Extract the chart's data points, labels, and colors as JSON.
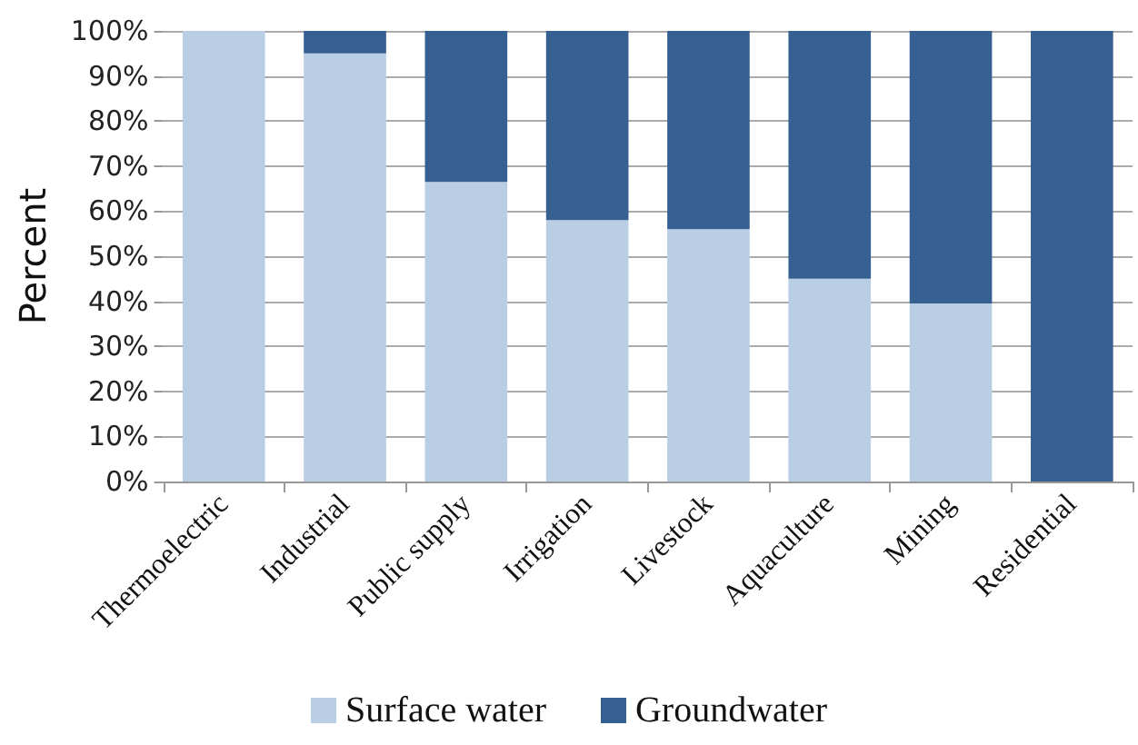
{
  "chart_data": {
    "type": "bar",
    "ylabel": "Percent",
    "stacked": true,
    "categories": [
      "Thermoelectric",
      "Industrial",
      "Public supply",
      "Irrigation",
      "Livestock",
      "Aquaculture",
      "Mining",
      "Residential"
    ],
    "series": [
      {
        "name": "Surface water",
        "color": "#b9cde5",
        "values": [
          100,
          95,
          66.5,
          58,
          56,
          45,
          39.5,
          0
        ]
      },
      {
        "name": "Groundwater",
        "color": "#366092",
        "values": [
          0,
          5,
          33.5,
          42,
          44,
          55,
          60.5,
          100
        ]
      }
    ],
    "ylim": [
      0,
      100
    ],
    "yticks": [
      {
        "value": 0,
        "label": "0%"
      },
      {
        "value": 10,
        "label": "10%"
      },
      {
        "value": 20,
        "label": "20%"
      },
      {
        "value": 30,
        "label": "30%"
      },
      {
        "value": 40,
        "label": "40%"
      },
      {
        "value": 50,
        "label": "50%"
      },
      {
        "value": 60,
        "label": "60%"
      },
      {
        "value": 70,
        "label": "70%"
      },
      {
        "value": 80,
        "label": "80%"
      },
      {
        "value": 90,
        "label": "90%"
      },
      {
        "value": 100,
        "label": "100%"
      }
    ],
    "grid": "y",
    "legend": "bottom"
  }
}
